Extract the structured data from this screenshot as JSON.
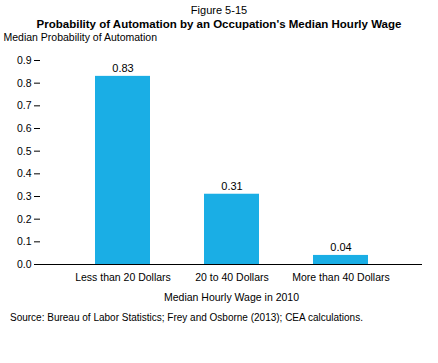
{
  "chart_data": {
    "type": "bar",
    "title": "Figure 5-15",
    "subtitle": "Probability of Automation by an Occupation's Median Hourly Wage",
    "ylabel": "Median Probability of Automation",
    "xlabel": "Median Hourly Wage in 2010",
    "categories": [
      "Less than 20 Dollars",
      "20 to 40 Dollars",
      "More than 40 Dollars"
    ],
    "values": [
      0.83,
      0.31,
      0.04
    ],
    "color": "#1aaee5",
    "ylim": [
      0,
      0.9
    ],
    "yticks": [
      {
        "value": 0,
        "label": "0.0"
      },
      0.1,
      0.2,
      0.3,
      0.4,
      0.5,
      0.6,
      0.7,
      0.8,
      0.9
    ],
    "data_labels": true,
    "grid": false,
    "annotations": [
      "Source: Bureau of Labor Statistics; Frey and Osborne (2013); CEA calculations."
    ]
  }
}
